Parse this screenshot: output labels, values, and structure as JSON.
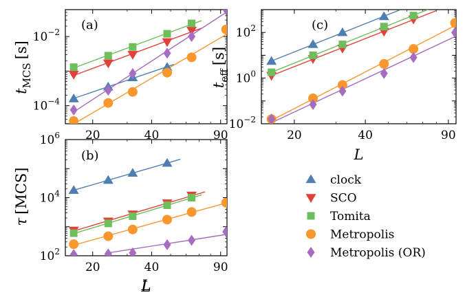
{
  "colors": {
    "clock": "#4f7fb0",
    "SCO": "#e2403b",
    "Tomita": "#6fbe5c",
    "Metropolis": "#f7972e",
    "Metropolis (OR)": "#a66cc0"
  },
  "legend": {
    "items": [
      {
        "name": "clock",
        "marker": "triangle-up"
      },
      {
        "name": "SCO",
        "marker": "triangle-down"
      },
      {
        "name": "Tomita",
        "marker": "square"
      },
      {
        "name": "Metropolis",
        "marker": "circle"
      },
      {
        "name": "Metropolis (OR)",
        "marker": "diamond"
      }
    ]
  },
  "chart_data": [
    {
      "panel": "(a)",
      "type": "scatter",
      "xscale": "log",
      "yscale": "log",
      "xlabel": "L",
      "ylabel": "t",
      "ylabel_sub": "MCS",
      "ylabel_unit": "[s]",
      "xlim": [
        14.5,
        97
      ],
      "ylim": [
        3e-05,
        0.06
      ],
      "xticks": [
        20,
        40,
        90
      ],
      "yticks": [
        {
          "value": 0.0001,
          "label": "10",
          "exp": "−4"
        },
        {
          "value": 0.01,
          "label": "10",
          "exp": "−2"
        }
      ],
      "series": [
        {
          "name": "clock",
          "x": [
            16,
            24,
            32,
            48
          ],
          "y": [
            0.00016,
            0.00035,
            0.00065,
            0.0013
          ],
          "fit": [
            16,
            52
          ]
        },
        {
          "name": "SCO",
          "x": [
            16,
            24,
            32,
            48,
            64
          ],
          "y": [
            0.0008,
            0.0017,
            0.003,
            0.007,
            0.015
          ],
          "fit": [
            16,
            72
          ]
        },
        {
          "name": "Tomita",
          "x": [
            16,
            24,
            32,
            48,
            64
          ],
          "y": [
            0.0013,
            0.0028,
            0.005,
            0.012,
            0.024
          ],
          "fit": [
            16,
            72
          ]
        },
        {
          "name": "Metropolis",
          "x": [
            16,
            24,
            32,
            48,
            64,
            96
          ],
          "y": [
            3.6e-05,
            0.00012,
            0.00025,
            0.0009,
            0.0025,
            0.016
          ],
          "fit": [
            16,
            97
          ]
        },
        {
          "name": "Metropolis (OR)",
          "x": [
            16,
            24,
            32,
            48,
            64,
            96
          ],
          "y": [
            7.5e-05,
            0.00028,
            0.00085,
            0.0033,
            0.01,
            0.06
          ],
          "fit": [
            16,
            97
          ]
        }
      ]
    },
    {
      "panel": "(b)",
      "type": "scatter",
      "xscale": "log",
      "yscale": "log",
      "xlabel": "L",
      "ylabel": "τ",
      "ylabel_unit": "[MCS]",
      "xlim": [
        14.5,
        97
      ],
      "ylim": [
        100,
        1000000
      ],
      "xticks": [
        20,
        40,
        90
      ],
      "yticks": [
        {
          "value": 100,
          "label": "10",
          "exp": "2"
        },
        {
          "value": 10000,
          "label": "10",
          "exp": "4"
        },
        {
          "value": 1000000,
          "label": "10",
          "exp": "6"
        }
      ],
      "series": [
        {
          "name": "clock",
          "x": [
            16,
            24,
            32,
            48
          ],
          "y": [
            18000,
            40000,
            70000,
            155000
          ],
          "fit": [
            16,
            56
          ]
        },
        {
          "name": "SCO",
          "x": [
            16,
            24,
            32,
            48,
            64
          ],
          "y": [
            750,
            1550,
            2700,
            6500,
            12000
          ],
          "fit": [
            16,
            75
          ]
        },
        {
          "name": "Tomita",
          "x": [
            16,
            24,
            32,
            48,
            64
          ],
          "y": [
            600,
            1300,
            2300,
            5500,
            10000
          ],
          "fit": [
            16,
            72
          ]
        },
        {
          "name": "Metropolis",
          "x": [
            16,
            24,
            32,
            48,
            64,
            96
          ],
          "y": [
            250,
            470,
            800,
            1750,
            3200,
            6700
          ],
          "fit": [
            16,
            97
          ]
        },
        {
          "name": "Metropolis (OR)",
          "x": [
            16,
            24,
            32,
            48,
            64,
            96
          ],
          "y": [
            110,
            115,
            125,
            240,
            340,
            670
          ],
          "fit": [
            24,
            97
          ]
        }
      ]
    },
    {
      "panel": "(c)",
      "type": "scatter",
      "xscale": "log",
      "yscale": "log",
      "xlabel": "L",
      "ylabel": "t",
      "ylabel_sub": "eff",
      "ylabel_unit": "[s]",
      "xlim": [
        14.5,
        97
      ],
      "ylim": [
        0.01,
        1000
      ],
      "xticks": [
        20,
        40,
        90
      ],
      "yticks": [
        {
          "value": 0.01,
          "label": "10",
          "exp": "−2"
        },
        {
          "value": 1,
          "label": "10",
          "exp": "0"
        },
        {
          "value": 100,
          "label": "10",
          "exp": "2"
        }
      ],
      "series": [
        {
          "name": "clock",
          "x": [
            16,
            24,
            32,
            48
          ],
          "y": [
            5.5,
            30,
            100,
            500
          ],
          "fit": [
            16,
            56
          ]
        },
        {
          "name": "SCO",
          "x": [
            16,
            24,
            32,
            48,
            64
          ],
          "y": [
            1.3,
            7,
            20,
            110,
            380
          ],
          "fit": [
            16,
            80
          ]
        },
        {
          "name": "Tomita",
          "x": [
            16,
            24,
            32,
            48,
            64
          ],
          "y": [
            1.8,
            10,
            30,
            180,
            550
          ],
          "fit": [
            16,
            80
          ]
        },
        {
          "name": "Metropolis",
          "x": [
            16,
            24,
            32,
            48,
            64,
            96
          ],
          "y": [
            0.016,
            0.13,
            0.5,
            4.2,
            19,
            260
          ],
          "fit": [
            16,
            97
          ]
        },
        {
          "name": "Metropolis (OR)",
          "x": [
            16,
            24,
            32,
            48,
            64,
            96
          ],
          "y": [
            0.016,
            0.07,
            0.27,
            1.6,
            8,
            100
          ],
          "fit": [
            16,
            97
          ]
        }
      ]
    }
  ]
}
